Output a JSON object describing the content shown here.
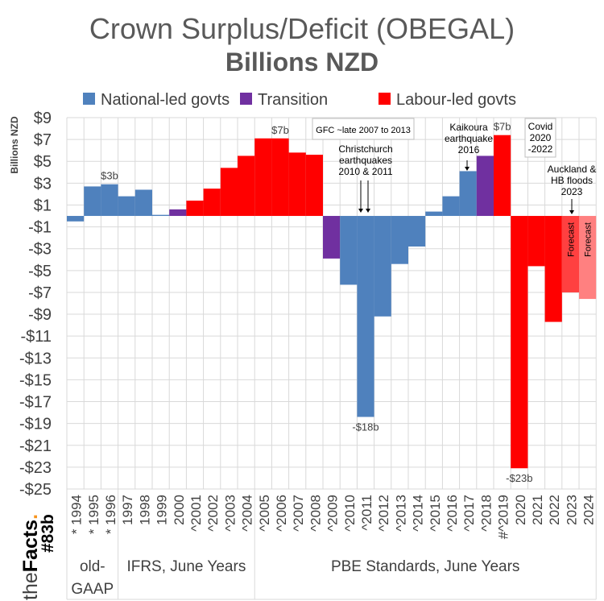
{
  "chart_data": {
    "type": "bar",
    "title": "Crown Surplus/Deficit (OBEGAL)",
    "subtitle": "Billions NZD",
    "ylabel": "Billions NZD",
    "ylim": [
      -25,
      9
    ],
    "yticks": [
      9,
      7,
      5,
      3,
      1,
      -1,
      -3,
      -5,
      -7,
      -9,
      -11,
      -13,
      -15,
      -17,
      -19,
      -21,
      -23,
      -25
    ],
    "ytick_labels": [
      "$9",
      "$7",
      "$5",
      "$3",
      "$1",
      "-$1",
      "-$3",
      "-$5",
      "-$7",
      "-$9",
      "-$11",
      "-$13",
      "-$15",
      "-$17",
      "-$19",
      "-$21",
      "-$23",
      "-$25"
    ],
    "grid": true,
    "legend_position": "top",
    "legend": [
      {
        "name": "National-led govts",
        "color": "#4f81bd"
      },
      {
        "name": "Transition",
        "color": "#7030a0"
      },
      {
        "name": "Labour-led govts",
        "color": "#ff0000"
      }
    ],
    "categories": [
      "* 1994",
      "* 1995",
      "* 1996",
      "1997",
      "1998",
      "1999",
      "2000",
      "^2001",
      "^2002",
      "^2003",
      "^2004",
      "^2005",
      "^2006",
      "^2007",
      "^2008",
      "^2009",
      "^2010",
      "^2011",
      "^2012",
      "^2013",
      "^2014",
      "^2015",
      "^2016",
      "^2017",
      "^2018",
      "#^2019",
      "2020",
      "2021",
      "2022",
      "2023",
      "2024"
    ],
    "values": [
      -0.5,
      2.7,
      2.9,
      1.8,
      2.4,
      0.1,
      0.6,
      1.4,
      2.5,
      4.4,
      5.5,
      7.1,
      7.1,
      5.8,
      5.6,
      -3.9,
      -6.3,
      -18.4,
      -9.2,
      -4.4,
      -2.8,
      0.4,
      1.8,
      4.1,
      5.5,
      7.4,
      -23.1,
      -4.6,
      -9.7,
      -7.0,
      -7.6
    ],
    "bar_groups": [
      "National-led govts",
      "National-led govts",
      "National-led govts",
      "National-led govts",
      "National-led govts",
      "National-led govts",
      "Transition",
      "Labour-led govts",
      "Labour-led govts",
      "Labour-led govts",
      "Labour-led govts",
      "Labour-led govts",
      "Labour-led govts",
      "Labour-led govts",
      "Labour-led govts",
      "Transition",
      "National-led govts",
      "National-led govts",
      "National-led govts",
      "National-led govts",
      "National-led govts",
      "National-led govts",
      "National-led govts",
      "National-led govts",
      "Transition",
      "Labour-led govts",
      "Labour-led govts",
      "Labour-led govts",
      "Labour-led govts",
      "Labour-led govts",
      "Labour-led govts"
    ],
    "bar_colors": [
      "#4f81bd",
      "#4f81bd",
      "#4f81bd",
      "#4f81bd",
      "#4f81bd",
      "#4f81bd",
      "#7030a0",
      "#ff0000",
      "#ff0000",
      "#ff0000",
      "#ff0000",
      "#ff0000",
      "#ff0000",
      "#ff0000",
      "#ff0000",
      "#7030a0",
      "#4f81bd",
      "#4f81bd",
      "#4f81bd",
      "#4f81bd",
      "#4f81bd",
      "#4f81bd",
      "#4f81bd",
      "#4f81bd",
      "#7030a0",
      "#ff0000",
      "#ff0000",
      "#ff0000",
      "#ff0000",
      "#ff4040",
      "#ff8080"
    ],
    "bar_notes": {
      "2023": "Forecast",
      "2024": "Forecast"
    },
    "data_labels": [
      {
        "text": "$3b",
        "category": "* 1996"
      },
      {
        "text": "$7b",
        "category": "^2006"
      },
      {
        "text": "-$18b",
        "category": "^2011"
      },
      {
        "text": "$7b",
        "category": "#^2019"
      },
      {
        "text": "-$23b",
        "category": "2020"
      }
    ],
    "annotations": {
      "gfc": "GFC ~late 2007 to 2013",
      "christchurch": [
        "Christchurch",
        "earthquakes",
        "2010 & 2011"
      ],
      "kaikoura": [
        "Kaikoura",
        "earthquake",
        "2016"
      ],
      "covid": [
        "Covid",
        "2020",
        "-2022"
      ],
      "floods": [
        "Auckland &",
        "HB floods",
        "2023"
      ]
    },
    "category_groups": [
      {
        "label": [
          "old-",
          "GAAP"
        ],
        "from": "* 1994",
        "to": "* 1996"
      },
      {
        "label": [
          "IFRS, June Years"
        ],
        "from": "1997",
        "to": "^2004"
      },
      {
        "label": [
          "PBE Standards, June Years"
        ],
        "from": "^2005",
        "to": "2024"
      }
    ]
  },
  "logo": {
    "the": "the",
    "facts": "Facts",
    "dot": ".",
    "id": "#83b",
    "dot_color": "#f7941d"
  }
}
